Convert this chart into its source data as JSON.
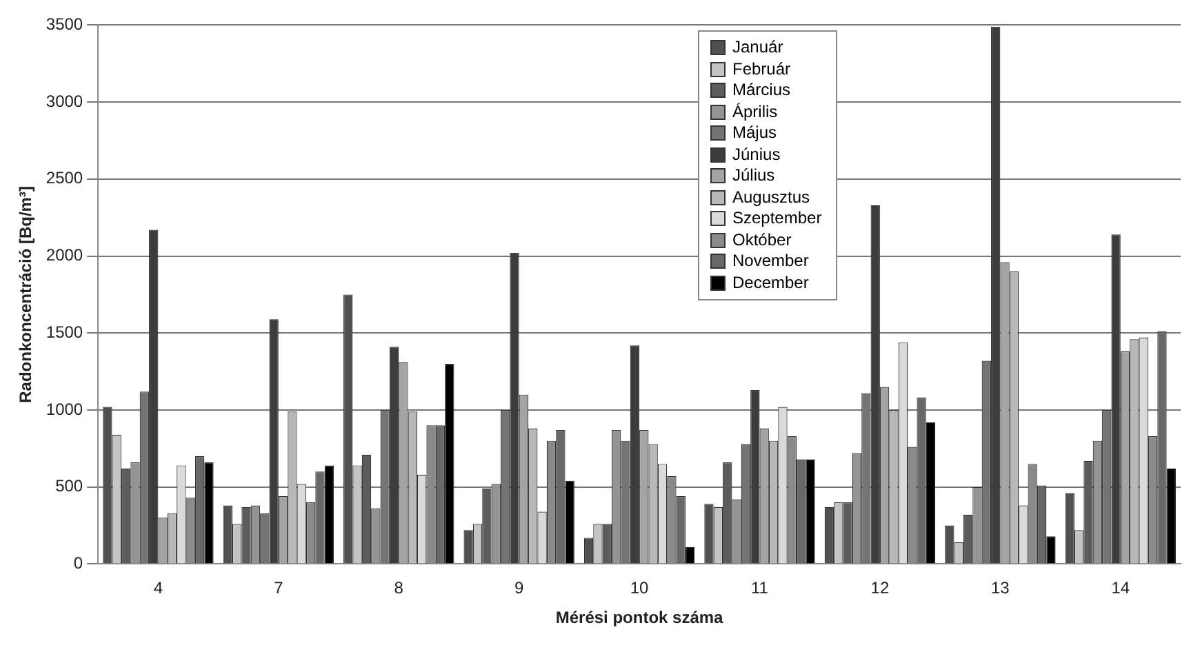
{
  "chart_data": {
    "type": "bar",
    "xlabel": "Mérési pontok száma",
    "ylabel": "Radonkoncentráció [Bq/m³]",
    "categories": [
      "4",
      "7",
      "8",
      "9",
      "10",
      "11",
      "12",
      "13",
      "14"
    ],
    "ylim": [
      0,
      3500
    ],
    "yticks": [
      0,
      500,
      1000,
      1500,
      2000,
      2500,
      3000,
      3500
    ],
    "grid": "y",
    "legend": "top right",
    "series": [
      {
        "name": "Január",
        "color": "#505050",
        "values": [
          1020,
          380,
          1750,
          220,
          170,
          390,
          370,
          250,
          460
        ]
      },
      {
        "name": "Február",
        "color": "#c4c4c4",
        "values": [
          840,
          260,
          640,
          260,
          260,
          370,
          400,
          140,
          220
        ]
      },
      {
        "name": "Március",
        "color": "#5c5c5c",
        "values": [
          620,
          370,
          710,
          490,
          260,
          660,
          400,
          320,
          670
        ]
      },
      {
        "name": "Április",
        "color": "#949494",
        "values": [
          660,
          380,
          360,
          520,
          870,
          420,
          720,
          500,
          800
        ]
      },
      {
        "name": "Május",
        "color": "#747474",
        "values": [
          1120,
          330,
          1000,
          1000,
          800,
          780,
          1110,
          1320,
          1000
        ]
      },
      {
        "name": "Június",
        "color": "#3c3c3c",
        "values": [
          2170,
          1590,
          1410,
          2020,
          1420,
          1130,
          2330,
          3490,
          2140
        ]
      },
      {
        "name": "Július",
        "color": "#a4a4a4",
        "values": [
          300,
          440,
          1310,
          1100,
          870,
          880,
          1150,
          1960,
          1380
        ]
      },
      {
        "name": "Augusztus",
        "color": "#b8b8b8",
        "values": [
          330,
          990,
          990,
          880,
          780,
          800,
          1000,
          1900,
          1460
        ]
      },
      {
        "name": "Szeptember",
        "color": "#dadada",
        "values": [
          640,
          520,
          580,
          340,
          650,
          1020,
          1440,
          380,
          1470
        ]
      },
      {
        "name": "Október",
        "color": "#8a8a8a",
        "values": [
          430,
          400,
          900,
          800,
          570,
          830,
          760,
          650,
          830
        ]
      },
      {
        "name": "November",
        "color": "#686868",
        "values": [
          700,
          600,
          900,
          870,
          440,
          680,
          1080,
          510,
          1510
        ]
      },
      {
        "name": "December",
        "color": "#000000",
        "values": [
          660,
          640,
          1300,
          540,
          110,
          680,
          920,
          180,
          620
        ]
      }
    ]
  }
}
